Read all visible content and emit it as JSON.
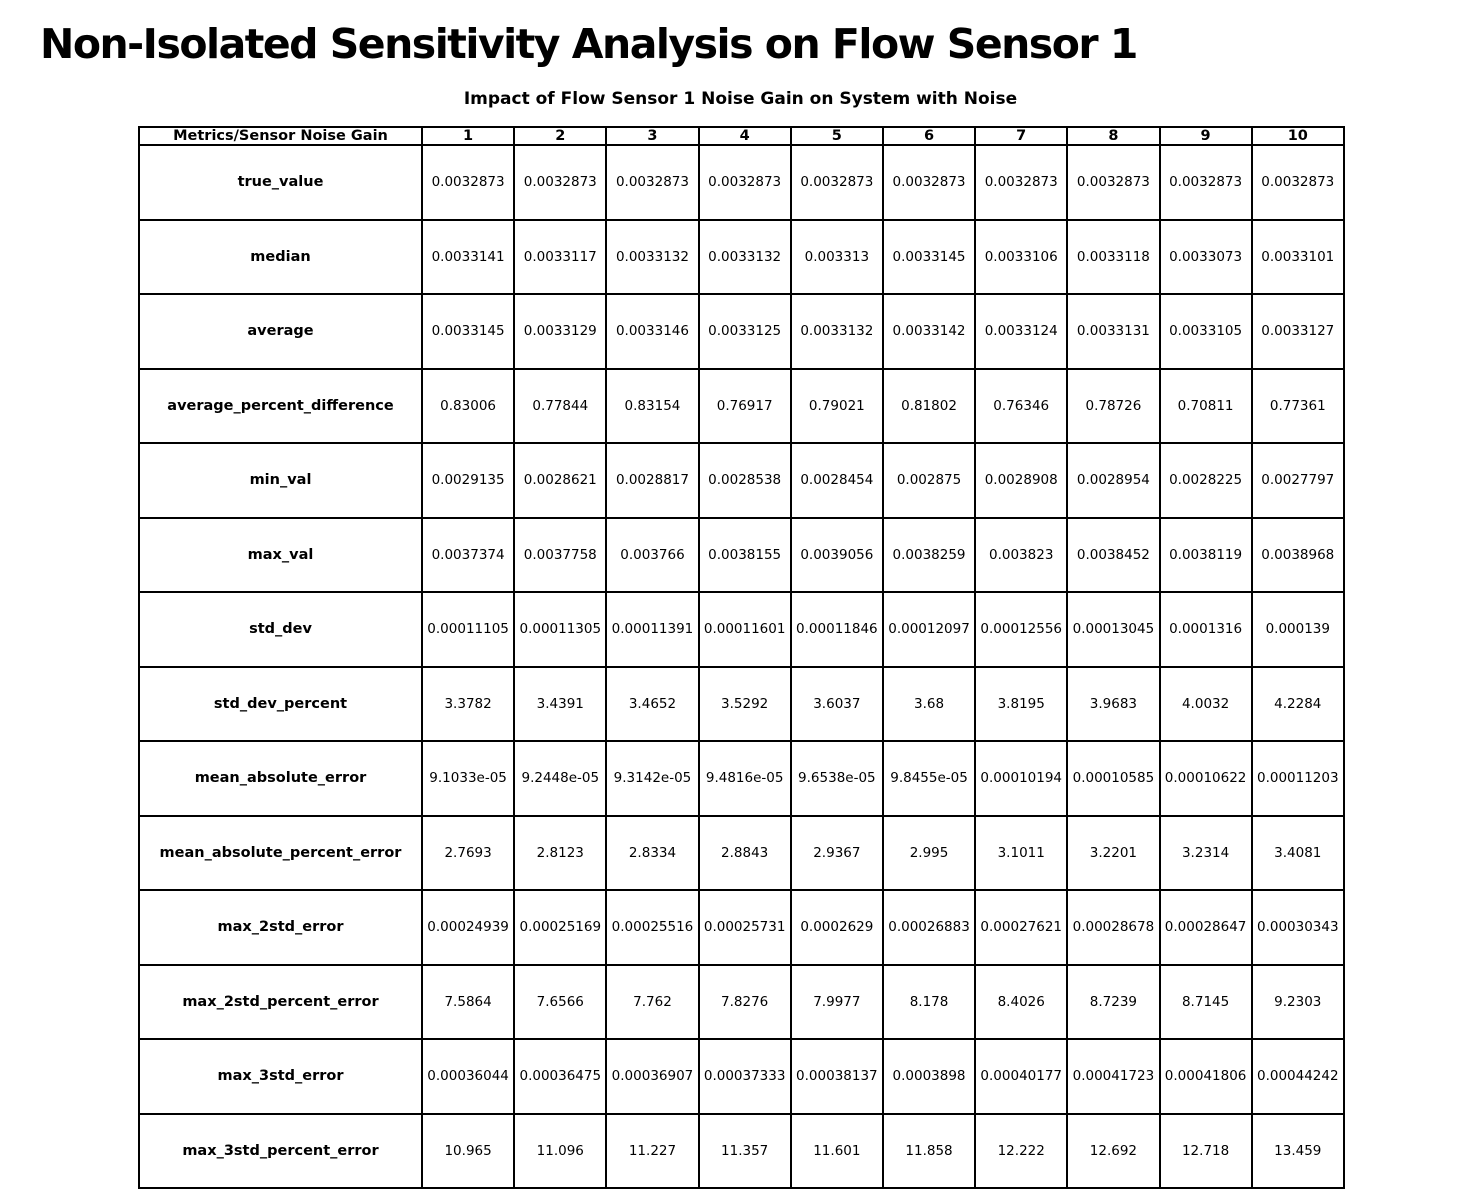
{
  "title": "Non-Isolated Sensitivity Analysis on Flow Sensor 1",
  "subtitle": "Impact of Flow Sensor 1 Noise Gain on System with Noise",
  "colors": {
    "background": "#ffffff",
    "border": "#000000",
    "text": "#000000"
  },
  "chart_data": {
    "type": "table",
    "title": "Impact of Flow Sensor 1 Noise Gain on System with Noise",
    "columns": [
      "Metrics/Sensor Noise Gain",
      "1",
      "2",
      "3",
      "4",
      "5",
      "6",
      "7",
      "8",
      "9",
      "10"
    ],
    "rows": [
      {
        "metric": "true_value",
        "values": [
          "0.0032873",
          "0.0032873",
          "0.0032873",
          "0.0032873",
          "0.0032873",
          "0.0032873",
          "0.0032873",
          "0.0032873",
          "0.0032873",
          "0.0032873"
        ]
      },
      {
        "metric": "median",
        "values": [
          "0.0033141",
          "0.0033117",
          "0.0033132",
          "0.0033132",
          "0.003313",
          "0.0033145",
          "0.0033106",
          "0.0033118",
          "0.0033073",
          "0.0033101"
        ]
      },
      {
        "metric": "average",
        "values": [
          "0.0033145",
          "0.0033129",
          "0.0033146",
          "0.0033125",
          "0.0033132",
          "0.0033142",
          "0.0033124",
          "0.0033131",
          "0.0033105",
          "0.0033127"
        ]
      },
      {
        "metric": "average_percent_difference",
        "values": [
          "0.83006",
          "0.77844",
          "0.83154",
          "0.76917",
          "0.79021",
          "0.81802",
          "0.76346",
          "0.78726",
          "0.70811",
          "0.77361"
        ]
      },
      {
        "metric": "min_val",
        "values": [
          "0.0029135",
          "0.0028621",
          "0.0028817",
          "0.0028538",
          "0.0028454",
          "0.002875",
          "0.0028908",
          "0.0028954",
          "0.0028225",
          "0.0027797"
        ]
      },
      {
        "metric": "max_val",
        "values": [
          "0.0037374",
          "0.0037758",
          "0.003766",
          "0.0038155",
          "0.0039056",
          "0.0038259",
          "0.003823",
          "0.0038452",
          "0.0038119",
          "0.0038968"
        ]
      },
      {
        "metric": "std_dev",
        "values": [
          "0.00011105",
          "0.00011305",
          "0.00011391",
          "0.00011601",
          "0.00011846",
          "0.00012097",
          "0.00012556",
          "0.00013045",
          "0.0001316",
          "0.000139"
        ]
      },
      {
        "metric": "std_dev_percent",
        "values": [
          "3.3782",
          "3.4391",
          "3.4652",
          "3.5292",
          "3.6037",
          "3.68",
          "3.8195",
          "3.9683",
          "4.0032",
          "4.2284"
        ]
      },
      {
        "metric": "mean_absolute_error",
        "values": [
          "9.1033e-05",
          "9.2448e-05",
          "9.3142e-05",
          "9.4816e-05",
          "9.6538e-05",
          "9.8455e-05",
          "0.00010194",
          "0.00010585",
          "0.00010622",
          "0.00011203"
        ]
      },
      {
        "metric": "mean_absolute_percent_error",
        "values": [
          "2.7693",
          "2.8123",
          "2.8334",
          "2.8843",
          "2.9367",
          "2.995",
          "3.1011",
          "3.2201",
          "3.2314",
          "3.4081"
        ]
      },
      {
        "metric": "max_2std_error",
        "values": [
          "0.00024939",
          "0.00025169",
          "0.00025516",
          "0.00025731",
          "0.0002629",
          "0.00026883",
          "0.00027621",
          "0.00028678",
          "0.00028647",
          "0.00030343"
        ]
      },
      {
        "metric": "max_2std_percent_error",
        "values": [
          "7.5864",
          "7.6566",
          "7.762",
          "7.8276",
          "7.9977",
          "8.178",
          "8.4026",
          "8.7239",
          "8.7145",
          "9.2303"
        ]
      },
      {
        "metric": "max_3std_error",
        "values": [
          "0.00036044",
          "0.00036475",
          "0.00036907",
          "0.00037333",
          "0.00038137",
          "0.0003898",
          "0.00040177",
          "0.00041723",
          "0.00041806",
          "0.00044242"
        ]
      },
      {
        "metric": "max_3std_percent_error",
        "values": [
          "10.965",
          "11.096",
          "11.227",
          "11.357",
          "11.601",
          "11.858",
          "12.222",
          "12.692",
          "12.718",
          "13.459"
        ]
      }
    ]
  }
}
